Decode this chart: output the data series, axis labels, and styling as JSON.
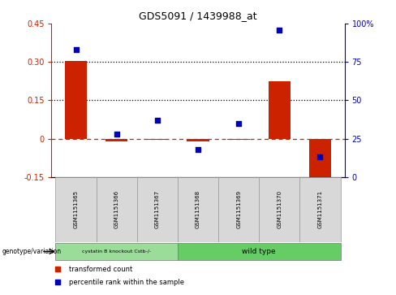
{
  "title": "GDS5091 / 1439988_at",
  "samples": [
    "GSM1151365",
    "GSM1151366",
    "GSM1151367",
    "GSM1151368",
    "GSM1151369",
    "GSM1151370",
    "GSM1151371"
  ],
  "transformed_count": [
    0.305,
    -0.012,
    -0.005,
    -0.012,
    -0.005,
    0.225,
    -0.185
  ],
  "percentile_rank": [
    83,
    28,
    37,
    18,
    35,
    96,
    13
  ],
  "ylim_left": [
    -0.15,
    0.45
  ],
  "ylim_right": [
    0,
    100
  ],
  "yticks_left": [
    -0.15,
    0.0,
    0.15,
    0.3,
    0.45
  ],
  "yticks_right": [
    0,
    25,
    50,
    75,
    100
  ],
  "ytick_labels_left": [
    "-0.15",
    "0",
    "0.15",
    "0.30",
    "0.45"
  ],
  "ytick_labels_right": [
    "0",
    "25",
    "50",
    "75",
    "100%"
  ],
  "bar_color": "#cc2200",
  "dot_color": "#0000bb",
  "bar_width": 0.55,
  "n_group1": 3,
  "n_group2": 4,
  "group1_label": "cystatin B knockout Cstb-/-",
  "group2_label": "wild type",
  "group1_color": "#99dd99",
  "group2_color": "#66cc66",
  "genotype_label": "genotype/variation",
  "legend_bar_label": "transformed count",
  "legend_dot_label": "percentile rank within the sample",
  "axis_color_left": "#cc2200",
  "axis_color_right": "#0000bb",
  "sample_bg_color": "#d8d8d8",
  "plot_bg": "#ffffff"
}
